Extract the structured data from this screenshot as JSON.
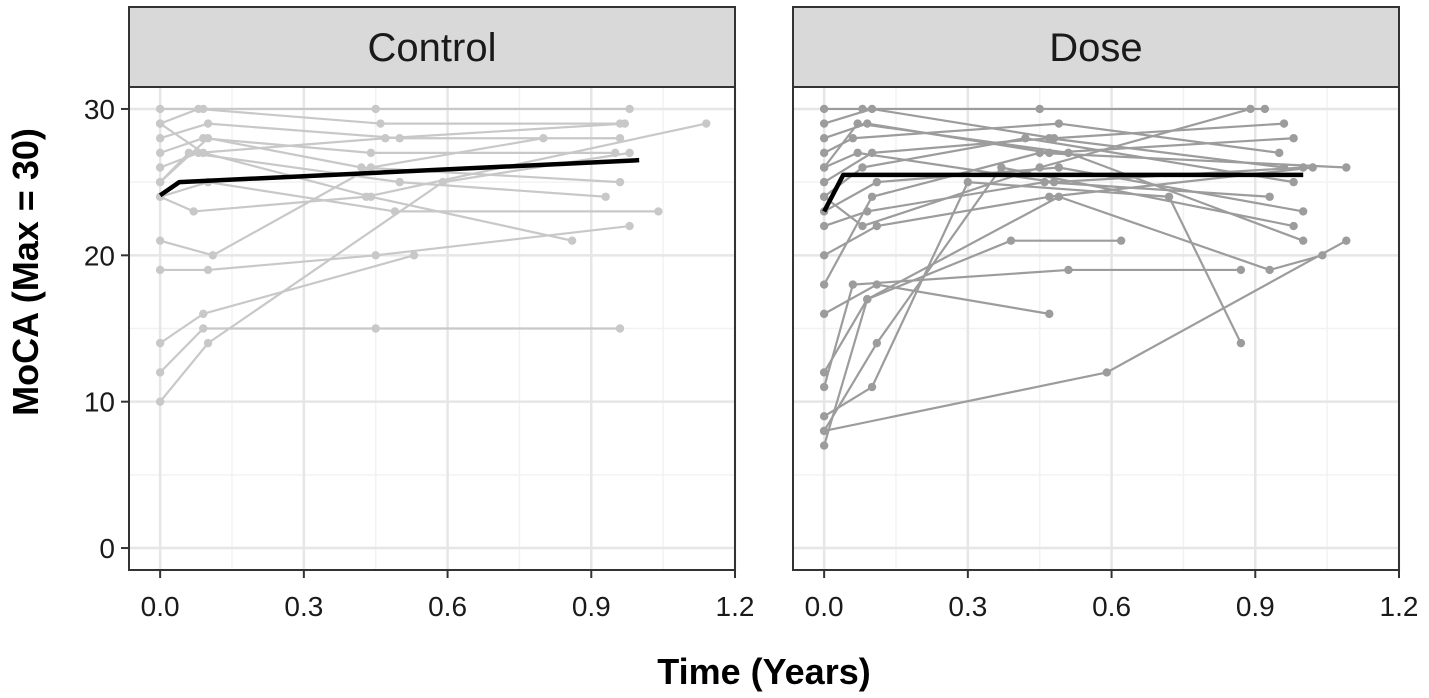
{
  "colors": {
    "control_lines": "#c8c8c8",
    "dose_lines": "#9c9c9c",
    "mean_line": "#000000",
    "strip_fill": "#d9d9d9",
    "grid_major": "#e6e6e6",
    "grid_minor": "#f2f2f2",
    "panel_border": "#333333"
  },
  "chart_data": {
    "type": "line",
    "xlabel": "Time (Years)",
    "ylabel": "MoCA (Max = 30)",
    "xlim": [
      -0.065,
      1.2
    ],
    "ylim": [
      -1.5,
      31.5
    ],
    "x_ticks": [
      "0.0",
      "0.3",
      "0.6",
      "0.9",
      "1.2"
    ],
    "x_tick_values": [
      0,
      0.3,
      0.6,
      0.9,
      1.2
    ],
    "y_ticks": [
      "0",
      "10",
      "20",
      "30"
    ],
    "y_tick_values": [
      0,
      10,
      20,
      30
    ],
    "grid": true,
    "panels": [
      {
        "title": "Control",
        "series_color": "control_lines",
        "mean_line": [
          [
            0,
            24.1
          ],
          [
            0.04,
            25
          ],
          [
            1.0,
            26.5
          ]
        ],
        "subjects": [
          [
            [
              0,
              30
            ],
            [
              0.09,
              30
            ],
            [
              0.45,
              30
            ],
            [
              0.98,
              30
            ]
          ],
          [
            [
              0,
              29
            ],
            [
              0.08,
              30
            ],
            [
              0.46,
              29
            ],
            [
              0.96,
              29
            ]
          ],
          [
            [
              0,
              28
            ],
            [
              0.1,
              29
            ],
            [
              0.5,
              28
            ],
            [
              0.96,
              28
            ]
          ],
          [
            [
              0,
              27
            ],
            [
              0.09,
              28
            ],
            [
              0.44,
              27
            ],
            [
              0.95,
              27
            ]
          ],
          [
            [
              0,
              26
            ],
            [
              0.08,
              27
            ],
            [
              0.47,
              28
            ],
            [
              0.97,
              29
            ]
          ],
          [
            [
              0,
              25
            ],
            [
              0.1,
              28
            ],
            [
              0.42,
              26
            ],
            [
              0.96,
              25
            ]
          ],
          [
            [
              0,
              25
            ],
            [
              0.06,
              27
            ],
            [
              0.5,
              25
            ],
            [
              0.93,
              24
            ]
          ],
          [
            [
              0,
              24
            ],
            [
              0.1,
              25
            ],
            [
              0.49,
              23
            ],
            [
              1.04,
              23
            ]
          ],
          [
            [
              0,
              29
            ],
            [
              0.09,
              27
            ],
            [
              0.44,
              24
            ],
            [
              0.86,
              21
            ]
          ],
          [
            [
              0,
              24
            ],
            [
              0.07,
              23
            ],
            [
              0.43,
              24
            ],
            [
              1.14,
              29
            ]
          ],
          [
            [
              0,
              21
            ],
            [
              0.11,
              20
            ],
            [
              0.44,
              26
            ],
            [
              0.8,
              28
            ]
          ],
          [
            [
              0,
              19
            ],
            [
              0.1,
              19
            ],
            [
              0.45,
              20
            ],
            [
              0.98,
              22
            ]
          ],
          [
            [
              0,
              14
            ],
            [
              0.09,
              16
            ],
            [
              0.53,
              20
            ]
          ],
          [
            [
              0,
              12
            ],
            [
              0.09,
              15
            ],
            [
              0.45,
              15
            ],
            [
              0.96,
              15
            ]
          ],
          [
            [
              0,
              10
            ],
            [
              0.1,
              14
            ],
            [
              0.59,
              25
            ],
            [
              0.98,
              27
            ]
          ]
        ]
      },
      {
        "title": "Dose",
        "series_color": "dose_lines",
        "mean_line": [
          [
            0,
            23
          ],
          [
            0.04,
            25.5
          ],
          [
            1.0,
            25.5
          ]
        ],
        "subjects": [
          [
            [
              0,
              30
            ],
            [
              0.08,
              30
            ],
            [
              0.45,
              30
            ],
            [
              0.92,
              30
            ]
          ],
          [
            [
              0,
              29
            ],
            [
              0.1,
              30
            ],
            [
              0.48,
              28
            ],
            [
              0.96,
              29
            ]
          ],
          [
            [
              0,
              28
            ],
            [
              0.09,
              29
            ],
            [
              0.47,
              27
            ],
            [
              0.98,
              28
            ]
          ],
          [
            [
              0,
              27
            ],
            [
              0.06,
              28
            ],
            [
              0.49,
              29
            ],
            [
              0.95,
              27
            ]
          ],
          [
            [
              0,
              26
            ],
            [
              0.07,
              27
            ],
            [
              0.48,
              25
            ],
            [
              1.0,
              26
            ]
          ],
          [
            [
              0,
              25
            ],
            [
              0.1,
              27
            ],
            [
              0.47,
              28
            ],
            [
              0.96,
              26
            ]
          ],
          [
            [
              0,
              24
            ],
            [
              0.08,
              26
            ],
            [
              0.42,
              28
            ],
            [
              0.98,
              25
            ]
          ],
          [
            [
              0,
              23
            ],
            [
              0.11,
              25
            ],
            [
              0.49,
              26
            ],
            [
              1.0,
              23
            ]
          ],
          [
            [
              0,
              22
            ],
            [
              0.09,
              23
            ],
            [
              0.46,
              25
            ],
            [
              0.93,
              24
            ]
          ],
          [
            [
              0,
              20
            ],
            [
              0.11,
              22
            ],
            [
              0.47,
              24
            ],
            [
              1.02,
              26
            ]
          ],
          [
            [
              0,
              18
            ],
            [
              0.1,
              24
            ],
            [
              0.45,
              27
            ],
            [
              1.09,
              26
            ]
          ],
          [
            [
              0,
              16
            ],
            [
              0.11,
              18
            ],
            [
              0.47,
              16
            ]
          ],
          [
            [
              0,
              12
            ],
            [
              0.09,
              17
            ],
            [
              0.39,
              21
            ],
            [
              0.62,
              21
            ]
          ],
          [
            [
              0,
              11
            ],
            [
              0.06,
              18
            ],
            [
              0.51,
              19
            ],
            [
              0.87,
              19
            ]
          ],
          [
            [
              0,
              9
            ],
            [
              0.1,
              11
            ],
            [
              0.3,
              25
            ],
            [
              0.72,
              24
            ],
            [
              0.87,
              14
            ]
          ],
          [
            [
              0,
              8
            ],
            [
              0.11,
              14
            ],
            [
              0.37,
              26
            ],
            [
              0.98,
              22
            ]
          ],
          [
            [
              0,
              8
            ],
            [
              0.59,
              12
            ],
            [
              1.09,
              21
            ]
          ],
          [
            [
              0,
              7
            ],
            [
              0.09,
              17
            ],
            [
              0.49,
              24
            ],
            [
              0.93,
              19
            ],
            [
              1.04,
              20
            ]
          ],
          [
            [
              0,
              24
            ],
            [
              0.08,
              22
            ],
            [
              0.45,
              26
            ],
            [
              0.89,
              30
            ]
          ],
          [
            [
              0,
              26
            ],
            [
              0.07,
              29
            ],
            [
              0.51,
              27
            ],
            [
              1.0,
              21
            ]
          ]
        ]
      }
    ]
  }
}
